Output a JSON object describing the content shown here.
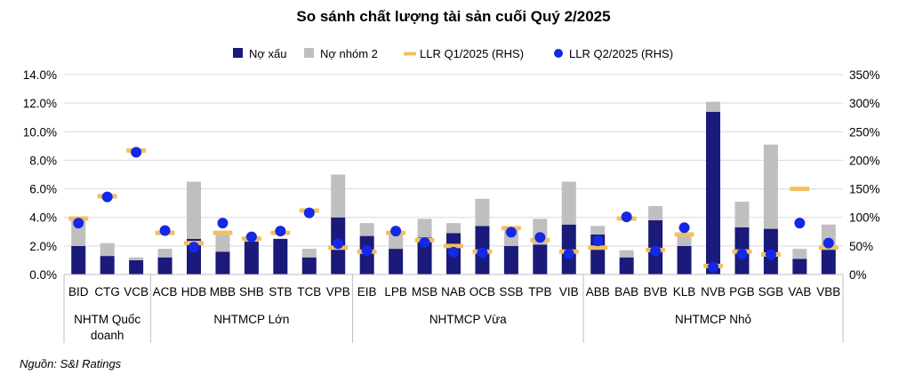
{
  "chart_data": {
    "type": "bar",
    "title": "So sánh chất lượng tài sản cuối Quý 2/2025",
    "source": "Nguồn: S&I Ratings",
    "colors": {
      "npl": "#1a1a7a",
      "group2": "#bfbfbf",
      "llr_q1": "#f0c060",
      "llr_q2": "#1428e6"
    },
    "legend": {
      "placement": "top-center",
      "items": [
        {
          "key": "npl",
          "label": "Nợ xấu",
          "shape": "square"
        },
        {
          "key": "group2",
          "label": "Nợ nhóm 2",
          "shape": "square"
        },
        {
          "key": "llr_q1",
          "label": "LLR Q1/2025 (RHS)",
          "shape": "dash"
        },
        {
          "key": "llr_q2",
          "label": "LLR Q2/2025 (RHS)",
          "shape": "dot"
        }
      ]
    },
    "y_left": {
      "min": 0,
      "max": 14,
      "ticks": [
        "0.0%",
        "2.0%",
        "4.0%",
        "6.0%",
        "8.0%",
        "10.0%",
        "12.0%",
        "14.0%"
      ]
    },
    "y_right": {
      "min": 0,
      "max": 350,
      "ticks": [
        "0%",
        "50%",
        "100%",
        "150%",
        "200%",
        "250%",
        "300%",
        "350%"
      ]
    },
    "grid": true,
    "categories": [
      "BID",
      "CTG",
      "VCB",
      "ACB",
      "HDB",
      "MBB",
      "SHB",
      "STB",
      "TCB",
      "VPB",
      "EIB",
      "LPB",
      "MSB",
      "NAB",
      "OCB",
      "SSB",
      "TPB",
      "VIB",
      "ABB",
      "BAB",
      "BVB",
      "KLB",
      "NVB",
      "PGB",
      "SGB",
      "VAB",
      "VBB"
    ],
    "groups": [
      {
        "label": "NHTM Quốc doanh",
        "label_lines": [
          "NHTM Quốc",
          "doanh"
        ],
        "start": 0,
        "end": 2
      },
      {
        "label": "NHTMCP Lớn",
        "label_lines": [
          "NHTMCP Lớn"
        ],
        "start": 3,
        "end": 9
      },
      {
        "label": "NHTMCP Vừa",
        "label_lines": [
          "NHTMCP Vừa"
        ],
        "start": 10,
        "end": 17
      },
      {
        "label": "NHTMCP Nhỏ",
        "label_lines": [
          "NHTMCP Nhỏ"
        ],
        "start": 18,
        "end": 26
      }
    ],
    "series": [
      {
        "key": "npl",
        "name": "Nợ xấu",
        "axis": "left",
        "type": "bar",
        "values": [
          2.0,
          1.3,
          1.0,
          1.2,
          2.5,
          1.6,
          2.3,
          2.5,
          1.2,
          4.0,
          2.7,
          1.8,
          2.6,
          2.9,
          3.4,
          2.0,
          2.1,
          3.5,
          2.8,
          1.2,
          3.8,
          2.0,
          11.4,
          3.3,
          3.2,
          1.1,
          1.8
        ]
      },
      {
        "key": "group2",
        "name": "Nợ nhóm 2",
        "axis": "left",
        "type": "bar-stacked",
        "values": [
          1.8,
          0.9,
          0.2,
          0.6,
          4.0,
          1.2,
          0.4,
          0.0,
          0.6,
          3.0,
          0.9,
          1.2,
          1.3,
          0.7,
          1.9,
          1.3,
          1.8,
          3.0,
          0.6,
          0.5,
          1.0,
          0.8,
          0.7,
          1.8,
          5.9,
          0.7,
          1.7
        ]
      },
      {
        "key": "llr_q1",
        "name": "LLR Q1/2025 (RHS)",
        "axis": "right",
        "type": "dash",
        "values": [
          98,
          137,
          217,
          73,
          55,
          73,
          63,
          73,
          112,
          47,
          40,
          73,
          60,
          50,
          40,
          81,
          60,
          40,
          47,
          98,
          43,
          70,
          15,
          40,
          35,
          150,
          47
        ]
      },
      {
        "key": "llr_q2",
        "name": "LLR Q2/2025 (RHS)",
        "axis": "right",
        "type": "dot",
        "values": [
          90,
          136,
          214,
          77,
          48,
          90,
          66,
          76,
          108,
          54,
          42,
          76,
          56,
          39,
          38,
          74,
          65,
          36,
          59,
          101,
          41,
          82,
          13,
          36,
          35,
          90,
          55
        ]
      }
    ]
  }
}
